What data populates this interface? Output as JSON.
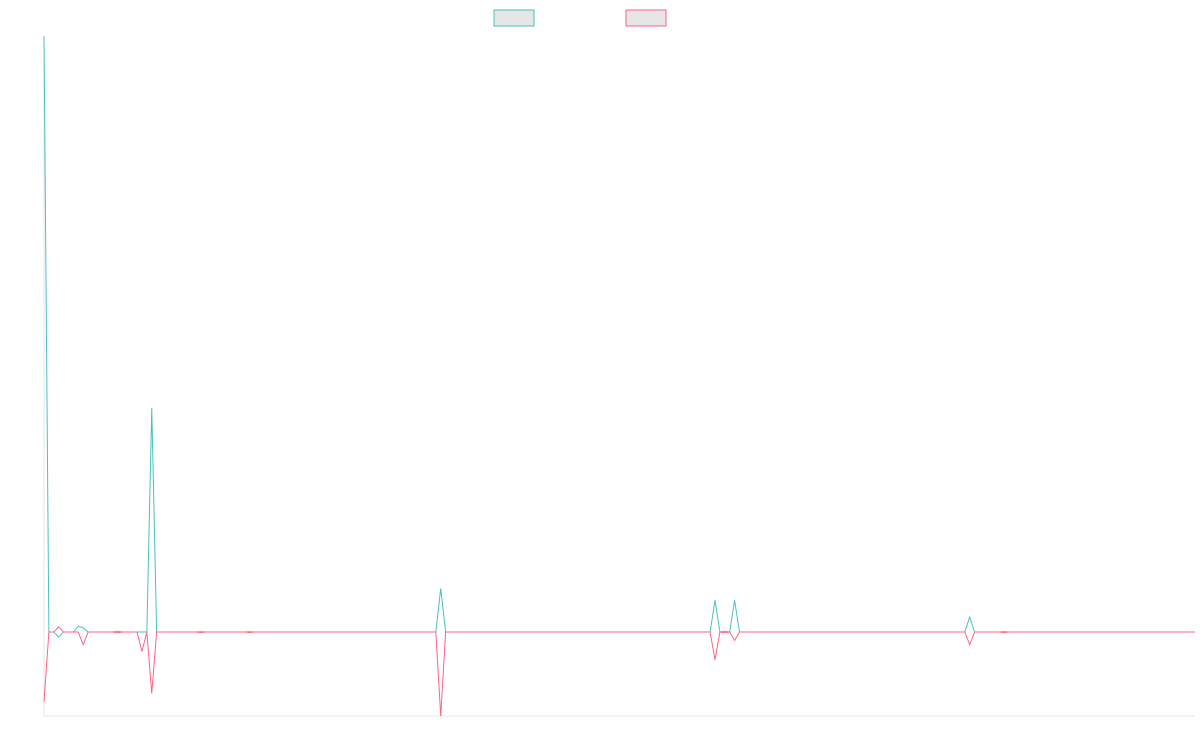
{
  "chart_data": {
    "type": "line",
    "x": [
      0,
      1,
      2,
      3,
      4,
      6,
      7,
      8,
      9,
      14,
      15,
      16,
      19,
      20,
      21,
      22,
      23,
      31,
      32,
      33,
      41,
      42,
      43,
      80,
      81,
      82,
      136,
      137,
      138,
      139,
      140,
      141,
      142,
      188,
      189,
      190,
      195,
      196,
      197,
      235
    ],
    "series": [
      {
        "color": "#4bc0c0",
        "values": [
          71,
          0,
          0,
          -0.6,
          0,
          0,
          0.7,
          0.5,
          0,
          0,
          0.1,
          0,
          0,
          0,
          0,
          26.7,
          0,
          0,
          0.05,
          0,
          0,
          0.05,
          0,
          0,
          5.2,
          0,
          0,
          3.8,
          0,
          0.1,
          0,
          3.8,
          0,
          0,
          1.8,
          0,
          0,
          0.05,
          0,
          0
        ]
      },
      {
        "color": "#ff6384",
        "values": [
          -8.3,
          0,
          0,
          0.6,
          0,
          0,
          0,
          -1.5,
          0,
          0,
          -0.1,
          0,
          0,
          -2.3,
          0,
          -7.3,
          0,
          0,
          -0.05,
          0,
          0,
          -0.05,
          0,
          0,
          -10,
          0,
          0,
          -3.3,
          0,
          -0.1,
          0,
          -1,
          0,
          0,
          -1.5,
          0,
          0,
          -0.05,
          0,
          0
        ]
      }
    ],
    "xlim": [
      0,
      235
    ],
    "ylim": [
      -10,
      71
    ],
    "legend": "top",
    "legend_fill": "#e6e6e6"
  }
}
